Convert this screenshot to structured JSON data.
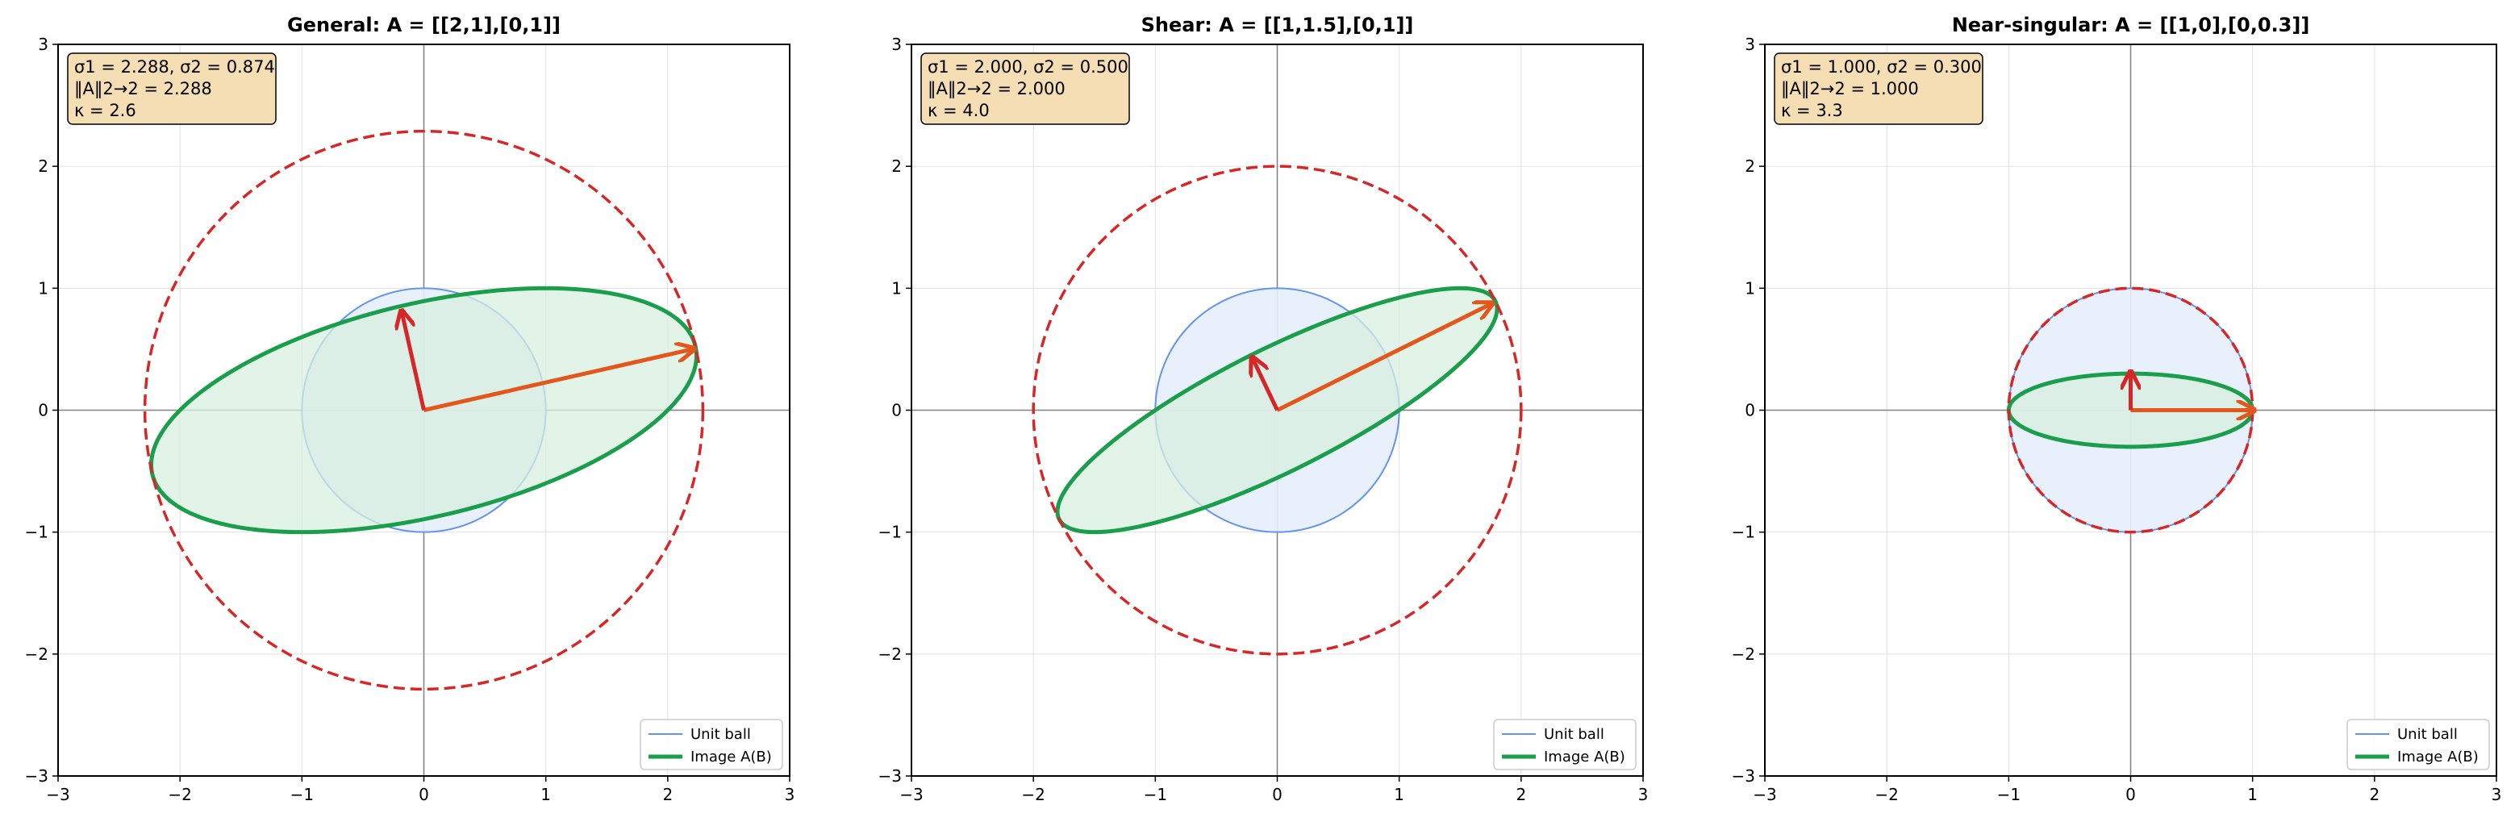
{
  "chart_data": [
    {
      "type": "line",
      "title": "General: A = [[2,1],[0,1]]",
      "xlim": [
        -3,
        3
      ],
      "ylim": [
        -3,
        3
      ],
      "xticks": [
        "−3",
        "−2",
        "−1",
        "0",
        "1",
        "2",
        "3"
      ],
      "yticks": [
        "−3",
        "−2",
        "−1",
        "0",
        "1",
        "2",
        "3"
      ],
      "grid": true,
      "matrix": [
        [
          2,
          1
        ],
        [
          0,
          1
        ]
      ],
      "sigma1": 2.288,
      "sigma2": 0.874,
      "v1": [
        2.2,
        0.5
      ],
      "v2": [
        -0.18,
        0.8
      ],
      "info": [
        "σ1 = 2.288, σ2 = 0.874",
        "‖A‖2→2 = 2.288",
        "κ = 2.6"
      ],
      "legend": [
        "Unit ball",
        "Image A(B)"
      ],
      "legend_position": "lower right"
    },
    {
      "type": "line",
      "title": "Shear: A = [[1,1.5],[0,1]]",
      "xlim": [
        -3,
        3
      ],
      "ylim": [
        -3,
        3
      ],
      "xticks": [
        "−3",
        "−2",
        "−1",
        "0",
        "1",
        "2",
        "3"
      ],
      "yticks": [
        "−3",
        "−2",
        "−1",
        "0",
        "1",
        "2",
        "3"
      ],
      "grid": true,
      "matrix": [
        [
          1,
          1.5
        ],
        [
          0,
          1
        ]
      ],
      "sigma1": 2.0,
      "sigma2": 0.5,
      "v1": [
        1.75,
        0.87
      ],
      "v2": [
        -0.2,
        0.42
      ],
      "info": [
        "σ1 = 2.000, σ2 = 0.500",
        "‖A‖2→2 = 2.000",
        "κ = 4.0"
      ],
      "legend": [
        "Unit ball",
        "Image A(B)"
      ],
      "legend_position": "lower right"
    },
    {
      "type": "line",
      "title": "Near-singular: A = [[1,0],[0,0.3]]",
      "xlim": [
        -3,
        3
      ],
      "ylim": [
        -3,
        3
      ],
      "xticks": [
        "−3",
        "−2",
        "−1",
        "0",
        "1",
        "2",
        "3"
      ],
      "yticks": [
        "−3",
        "−2",
        "−1",
        "0",
        "1",
        "2",
        "3"
      ],
      "grid": true,
      "matrix": [
        [
          1,
          0
        ],
        [
          0,
          0.3
        ]
      ],
      "sigma1": 1.0,
      "sigma2": 0.3,
      "v1": [
        1.0,
        0.0
      ],
      "v2": [
        0.0,
        0.3
      ],
      "info": [
        "σ1 = 1.000, σ2 = 0.300",
        "‖A‖2→2 = 1.000",
        "κ = 3.3"
      ],
      "legend": [
        "Unit ball",
        "Image A(B)"
      ],
      "legend_position": "lower right"
    }
  ],
  "colors": {
    "unit_ball_line": "#6495ed",
    "unit_ball_fill": "#e6eefb",
    "image_line": "#1a9e4b",
    "image_fill": "#d8efe0",
    "norm_circle": "#d62728",
    "v1_arrow": "#e4571c",
    "v2_arrow": "#d62728",
    "info_box_fill": "#f5deb3",
    "axis_line": "#808080",
    "grid": "#e0e0e0"
  }
}
